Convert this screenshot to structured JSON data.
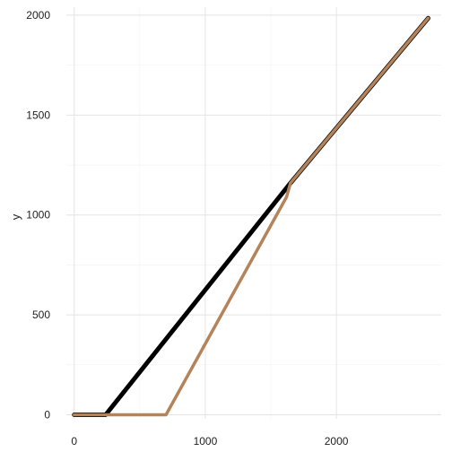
{
  "chart_data": {
    "type": "line",
    "title": "",
    "xlabel": "",
    "ylabel": "y",
    "xlim": [
      -60,
      2800
    ],
    "ylim": [
      -20,
      2040
    ],
    "x_ticks": [
      0,
      1000,
      2000
    ],
    "x_tick_labels": [
      "0",
      "1000",
      "2000"
    ],
    "y_ticks": [
      0,
      500,
      1000,
      1500,
      2000
    ],
    "y_tick_labels": [
      "0",
      "500",
      "1000",
      "1500",
      "2000"
    ],
    "grid": true,
    "legend": "none",
    "series": [
      {
        "color": "#000000",
        "x": [
          0,
          200,
          240,
          1650,
          2700
        ],
        "y": [
          0,
          0,
          0,
          1160,
          1985
        ]
      },
      {
        "color": "#b5835a",
        "x": [
          0,
          700,
          1620,
          1650,
          2700
        ],
        "y": [
          0,
          0,
          1090,
          1160,
          1985
        ]
      }
    ]
  }
}
